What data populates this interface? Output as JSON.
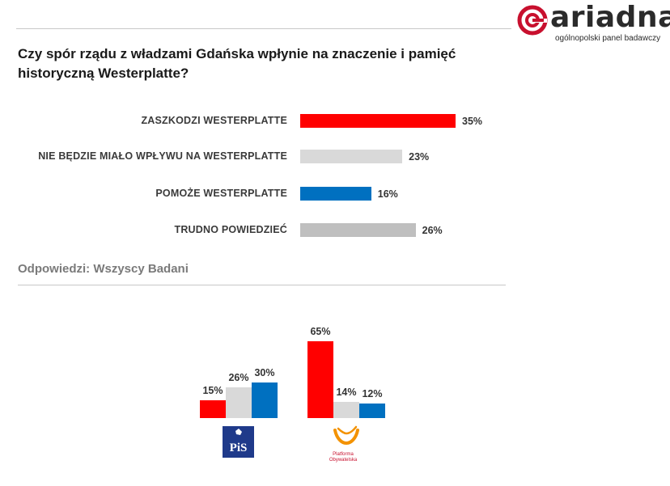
{
  "brand": {
    "name": "ariadna",
    "tagline": "ogólnopolski panel badawczy",
    "accent_color": "#c8102e"
  },
  "question": {
    "line1": "Czy spór rządu z władzami Gdańska wpłynie na znaczenie i pamięć",
    "line2": "historyczną Westerplatte?"
  },
  "respondents_label": "Odpowiedzi: Wszyscy Badani",
  "chart_data": [
    {
      "type": "bar",
      "orientation": "horizontal",
      "categories": [
        "ZASZKODZI WESTERPLATTE",
        "NIE BĘDZIE MIAŁO WPŁYWU NA WESTERPLATTE",
        "POMOŻE WESTERPLATTE",
        "TRUDNO POWIEDZIEĆ"
      ],
      "values": [
        35,
        23,
        16,
        26
      ],
      "value_labels": [
        "35%",
        "23%",
        "16%",
        "26%"
      ],
      "colors": [
        "#ff0000",
        "#d9d9d9",
        "#0070c0",
        "#bfbfbf"
      ],
      "unit": "%"
    },
    {
      "type": "bar",
      "orientation": "vertical",
      "categories": [
        "PiS",
        "Platforma Obywatelska"
      ],
      "series": [
        {
          "values": [
            15,
            65
          ],
          "value_labels": [
            "15%",
            "65%"
          ],
          "color": "#ff0000"
        },
        {
          "values": [
            26,
            14
          ],
          "value_labels": [
            "26%",
            "14%"
          ],
          "color": "#d9d9d9"
        },
        {
          "values": [
            30,
            12
          ],
          "value_labels": [
            "30%",
            "12%"
          ],
          "color": "#0070c0"
        }
      ],
      "category_icons": [
        "pis-logo-icon",
        "platforma-obywatelska-logo-icon"
      ],
      "unit": "%"
    }
  ],
  "po_logo": {
    "line1": "Platforma",
    "line2": "Obywatelska"
  }
}
